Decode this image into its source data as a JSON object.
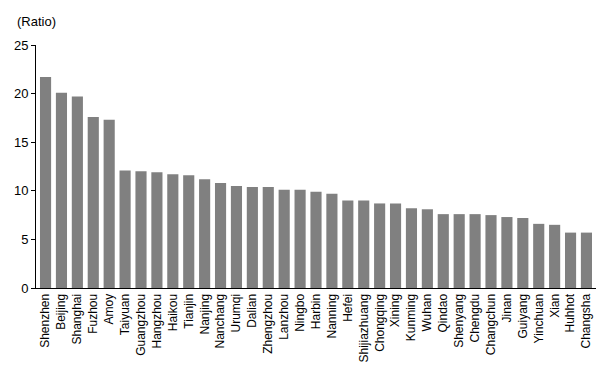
{
  "chart_data": {
    "type": "bar",
    "y_label": "(Ratio)",
    "categories": [
      "Shenzhen",
      "Beijing",
      "Shanghai",
      "Fuzhou",
      "Amoy",
      "Taiyuan",
      "Guangzhou",
      "Hangzhou",
      "Haikou",
      "Tianjin",
      "Nanjing",
      "Nanchang",
      "Urumqi",
      "Dalian",
      "Zhengzhou",
      "Lanzhou",
      "Ningbo",
      "Harbin",
      "Nanning",
      "Hefei",
      "Shijiazhuang",
      "Chongqing",
      "Xining",
      "Kunming",
      "Wuhan",
      "Qindao",
      "Shenyang",
      "Chengdu",
      "Changchun",
      "Jinan",
      "Guiyang",
      "Yinchuan",
      "Xian",
      "Huhhot",
      "Changsha"
    ],
    "values": [
      21.7,
      20.1,
      19.7,
      17.6,
      17.3,
      12.1,
      12.0,
      11.9,
      11.7,
      11.6,
      11.2,
      10.8,
      10.5,
      10.4,
      10.4,
      10.1,
      10.1,
      9.9,
      9.7,
      9.0,
      9.0,
      8.7,
      8.7,
      8.2,
      8.1,
      7.6,
      7.6,
      7.6,
      7.5,
      7.3,
      7.2,
      6.6,
      6.5,
      5.7,
      5.7
    ],
    "color": "#808080",
    "ylim": [
      0,
      25
    ],
    "yticks": [
      0,
      5,
      10,
      15,
      20,
      25
    ],
    "grid": false
  }
}
